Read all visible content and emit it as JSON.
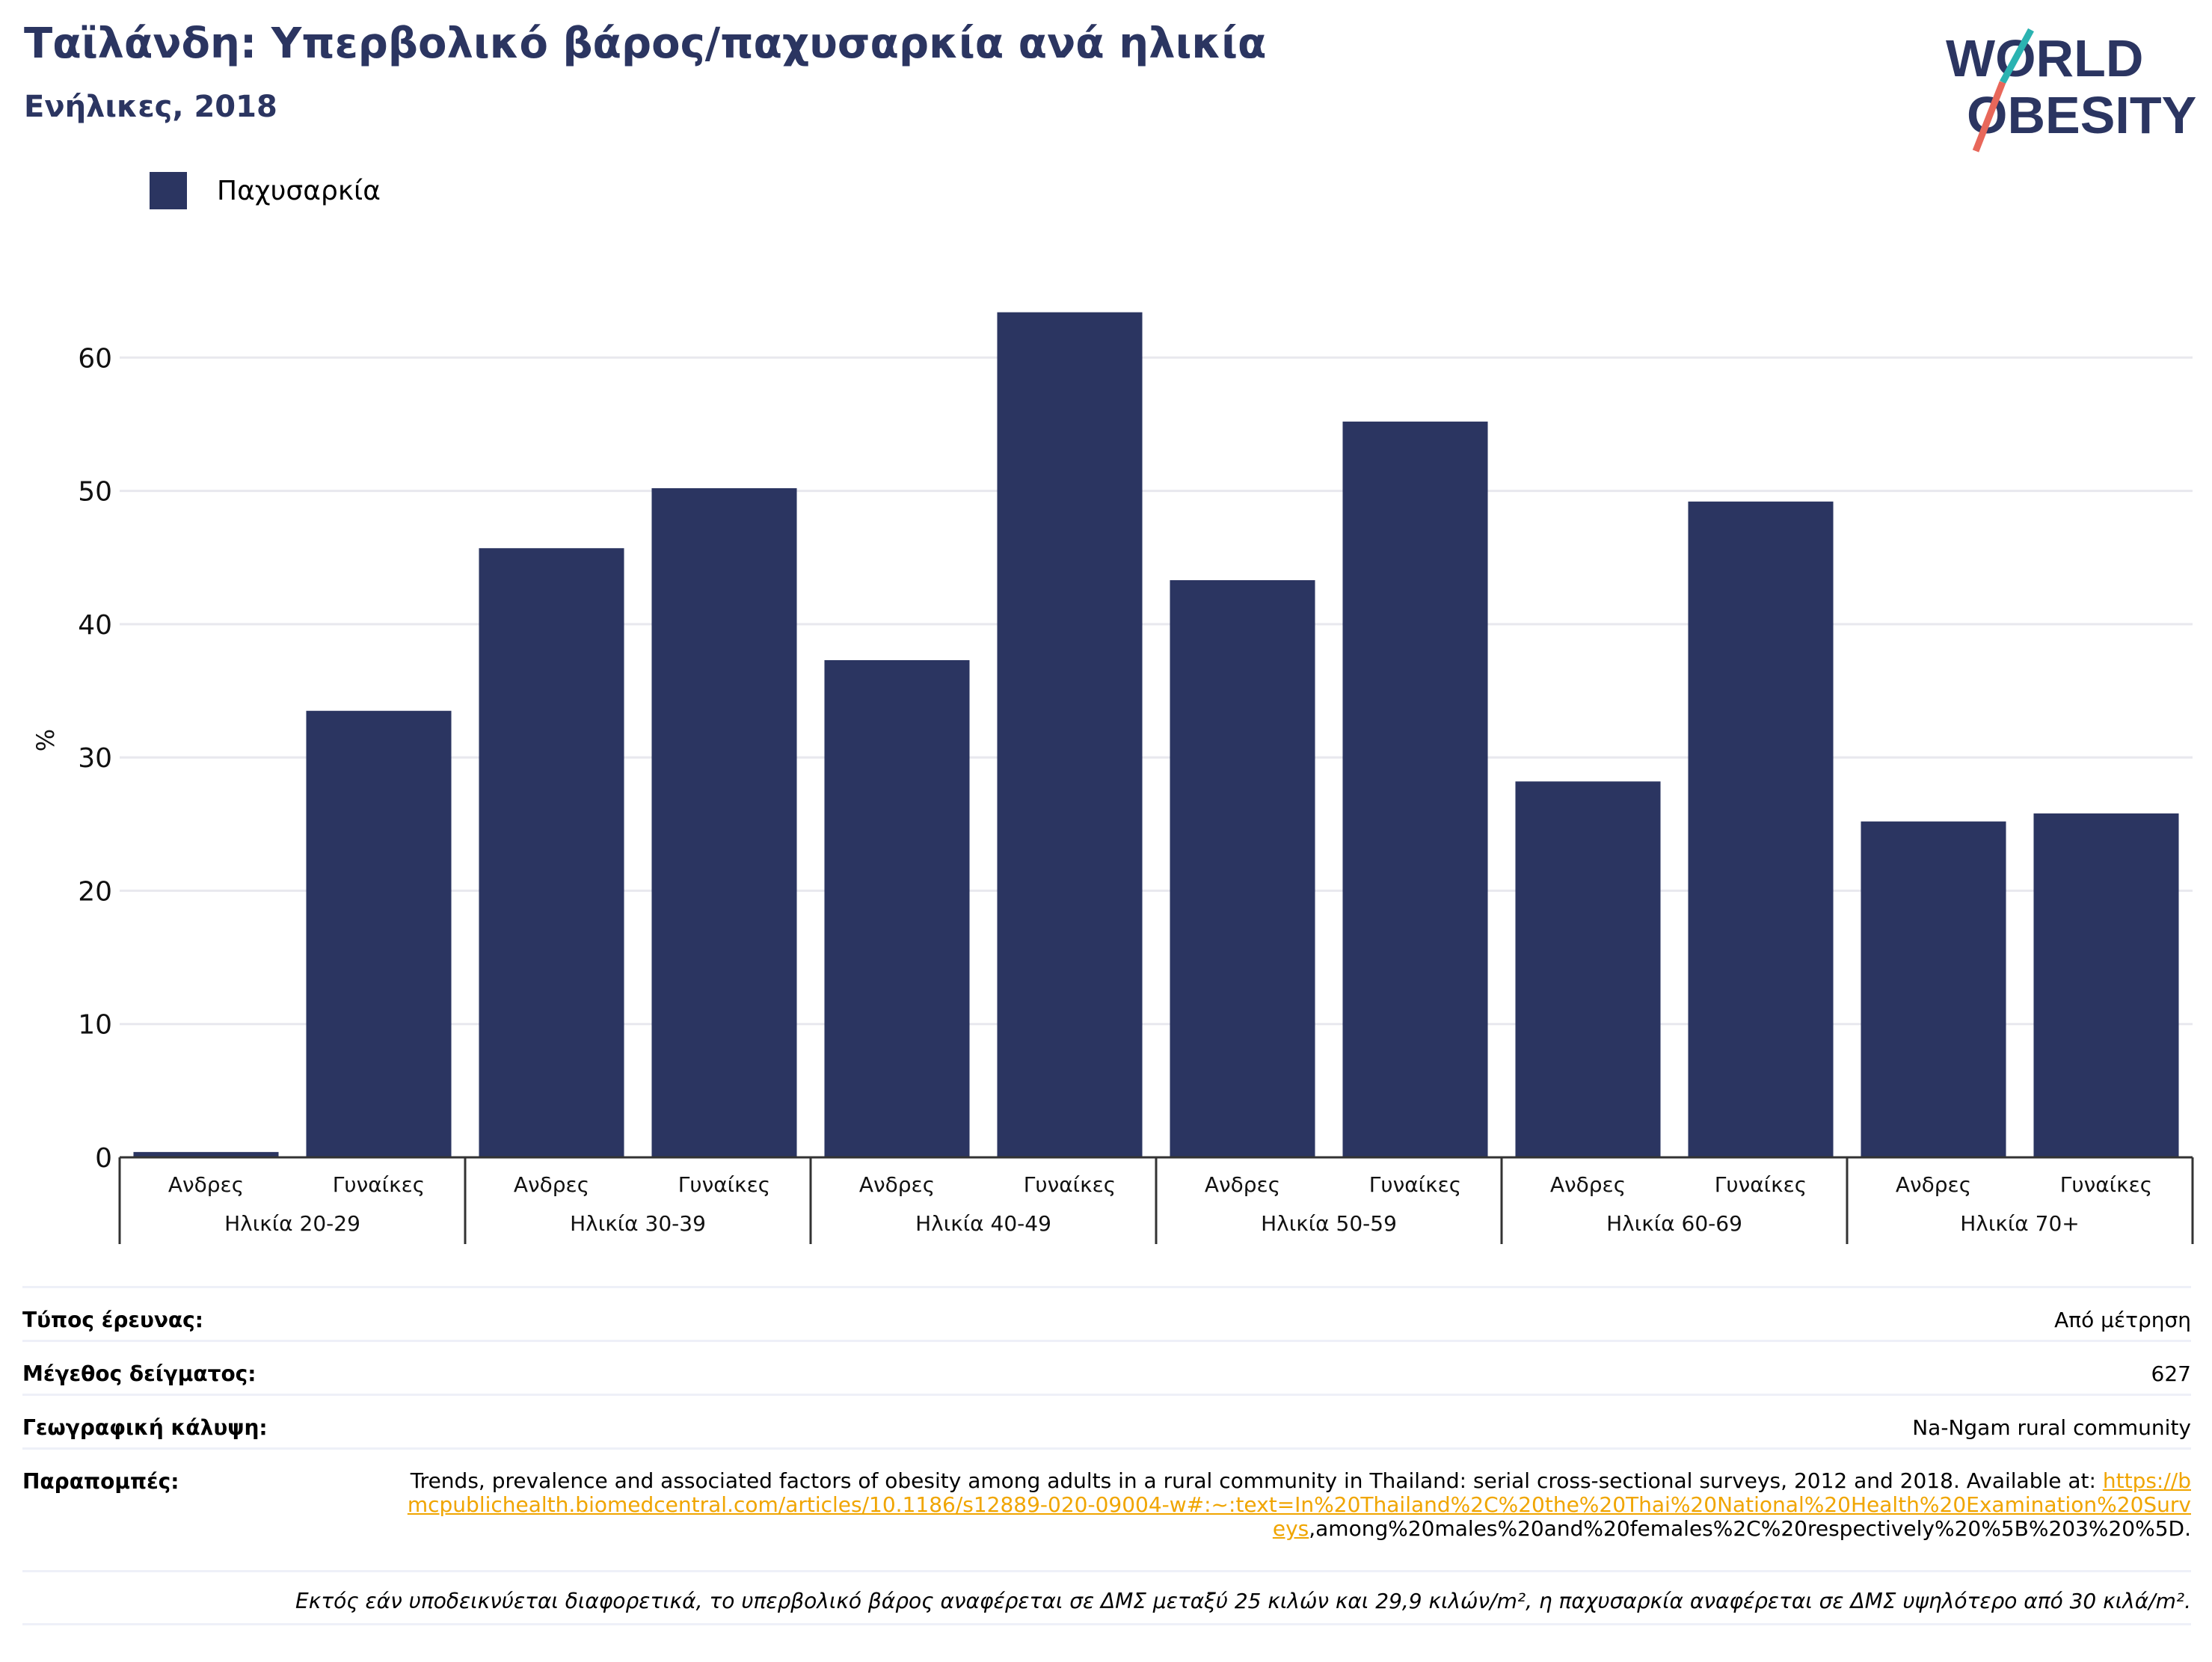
{
  "title": "Ταϊλάνδη: Υπερβολικό βάρος/παχυσαρκία ανά ηλικία",
  "subtitle": "Ενήλικες, 2018",
  "logo": {
    "line1": "WORLD",
    "line2": "OBESITY"
  },
  "colors": {
    "bar": "#2b3561",
    "accent_teal": "#2bb3b1",
    "accent_red": "#e8675a",
    "link": "#f0a500"
  },
  "chart_data": {
    "type": "bar",
    "ylabel": "%",
    "ylim": [
      0,
      70
    ],
    "yticks": [
      0,
      10,
      20,
      30,
      40,
      50,
      60
    ],
    "grid": true,
    "legend_position": "top-left",
    "series": [
      {
        "name": "Παχυσαρκία",
        "values": [
          0.4,
          33.5,
          45.7,
          50.2,
          37.3,
          63.4,
          43.3,
          55.2,
          28.2,
          49.2,
          25.2,
          25.8
        ]
      }
    ],
    "categories": [
      "Ανδρες",
      "Γυναίκες",
      "Ανδρες",
      "Γυναίκες",
      "Ανδρες",
      "Γυναίκες",
      "Ανδρες",
      "Γυναίκες",
      "Ανδρες",
      "Γυναίκες",
      "Ανδρες",
      "Γυναίκες"
    ],
    "groups": [
      "Ηλικία 20-29",
      "Ηλικία 30-39",
      "Ηλικία 40-49",
      "Ηλικία 50-59",
      "Ηλικία 60-69",
      "Ηλικία 70+"
    ]
  },
  "info": {
    "survey_type": {
      "label": "Τύπος έρευνας:",
      "value": "Από μέτρηση"
    },
    "sample_size": {
      "label": "Μέγεθος δείγματος:",
      "value": "627"
    },
    "coverage": {
      "label": "Γεωγραφική κάλυψη:",
      "value": "Na-Ngam rural community"
    },
    "references": {
      "label": "Παραπομπές:",
      "text": "Trends, prevalence and associated factors of obesity among adults in a rural community in Thailand: serial cross-sectional surveys, 2012 and 2018. Available at: ",
      "link": "https://bmcpublichealth.biomedcentral.com/articles/10.1186/s12889-020-09004-w#:~:text=In%20Thailand%2C%20the%20Thai%20National%20Health%20Examination%20Surveys",
      "tail": ",among%20males%20and%20females%2C%20respectively%20%5B%203%20%5D."
    }
  },
  "footnote": "Εκτός εάν υποδεικνύεται διαφορετικά, το υπερβολικό βάρος αναφέρεται σε ΔΜΣ μεταξύ 25 κιλών και 29,9 κιλών/m², η παχυσαρκία αναφέρεται σε ΔΜΣ υψηλότερο από 30 κιλά/m²."
}
